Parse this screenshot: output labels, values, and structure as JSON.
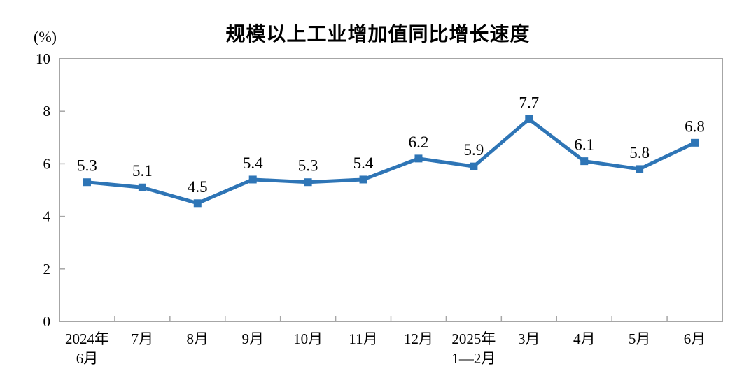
{
  "chart_data": {
    "type": "line",
    "title": "规模以上工业增加值同比增长速度",
    "unit": "(%)",
    "categories": [
      "2024年\n6月",
      "7月",
      "8月",
      "9月",
      "10月",
      "11月",
      "12月",
      "2025年\n1—2月",
      "3月",
      "4月",
      "5月",
      "6月"
    ],
    "values": [
      5.3,
      5.1,
      4.5,
      5.4,
      5.3,
      5.4,
      6.2,
      5.9,
      7.7,
      6.1,
      5.8,
      6.8
    ],
    "data_labels": [
      "5.3",
      "5.1",
      "4.5",
      "5.4",
      "5.3",
      "5.4",
      "6.2",
      "5.9",
      "7.7",
      "6.1",
      "5.8",
      "6.8"
    ],
    "yticks": [
      0,
      2,
      4,
      6,
      8,
      10
    ],
    "ylim": [
      0,
      10
    ],
    "grid": false,
    "legend": "none",
    "marker": "square",
    "line_color": "#2E75B6",
    "border_color": "#A6A6A6",
    "text_color": "#000000"
  }
}
